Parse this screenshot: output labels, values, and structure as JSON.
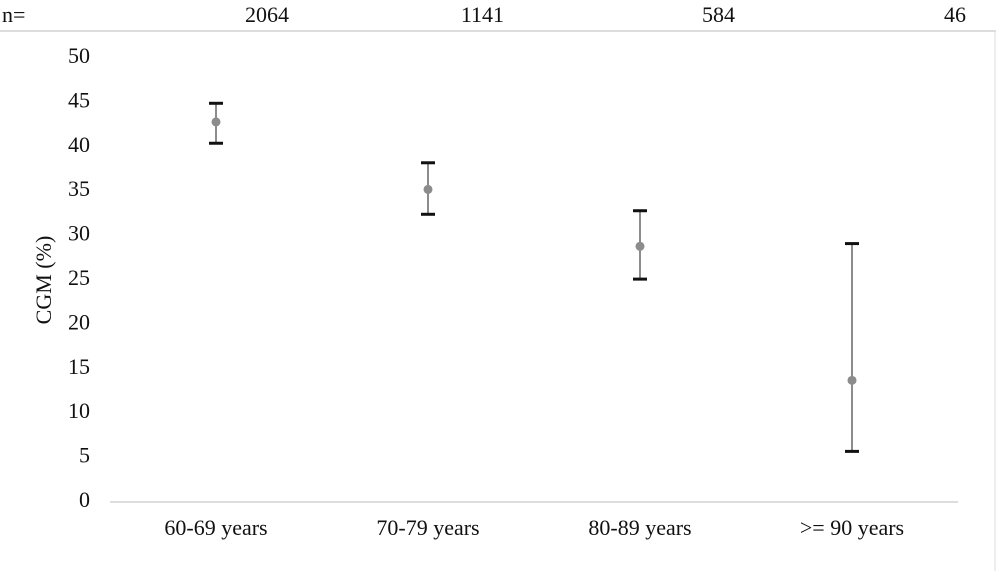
{
  "chart_data": {
    "type": "errorbar",
    "y_label": "CGM  (%)",
    "n_label": "n=",
    "n": [
      2064,
      1141,
      584,
      46
    ],
    "categories": [
      "60-69 years",
      "70-79 years",
      "80-89 years",
      ">= 90 years"
    ],
    "series": [
      {
        "color": "#8c8c8c",
        "values": [
          42.8,
          35.2,
          28.8,
          13.7
        ],
        "lower": [
          40.4,
          32.4,
          25.1,
          5.7
        ],
        "upper": [
          44.9,
          38.2,
          32.8,
          29.1
        ]
      }
    ],
    "ylim": [
      0,
      50
    ],
    "yticks": [
      0,
      5,
      10,
      15,
      20,
      25,
      30,
      35,
      40,
      45,
      50
    ],
    "grid": false
  }
}
